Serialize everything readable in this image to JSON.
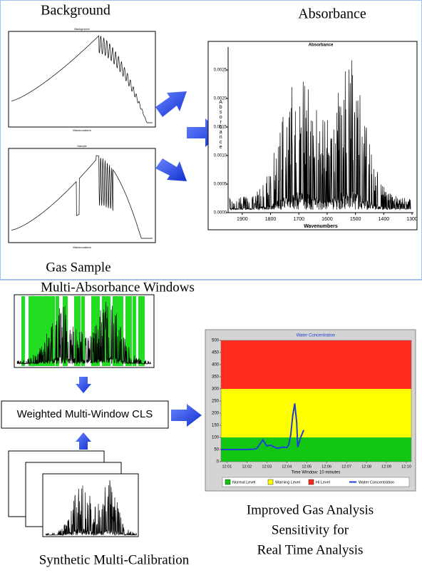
{
  "labels": {
    "background": "Background",
    "absorbance": "Absorbance",
    "gas_sample": "Gas Sample",
    "multi_windows": "Multi-Absorbance Windows",
    "cls": "Weighted Multi-Window CLS",
    "synthetic": "Synthetic Multi-Calibration",
    "improved": [
      "Improved Gas Analysis",
      "Sensitivity for",
      "Real Time Analysis"
    ]
  },
  "background_chart": {
    "title": "Background",
    "x_label": "Wavenumbers"
  },
  "sample_chart": {
    "title": "Sample",
    "x_label": "Wavenumbers"
  },
  "absorbance_chart": {
    "title": "Absorbance",
    "x_label": "Wavenumbers",
    "y_label": "Absorbance",
    "xlim": [
      1950,
      1295
    ],
    "xticks": [
      1900,
      1800,
      1700,
      1600,
      1500,
      1400,
      1300
    ],
    "ylim": [
      0,
      0.0029
    ],
    "yticks": [
      {
        "value": 0,
        "label": "0.0000"
      },
      {
        "value": 0.0005,
        "label": "0.0005"
      },
      {
        "value": 0.001,
        "label": "0.0010"
      },
      {
        "value": 0.0015,
        "label": "0.0015"
      },
      {
        "value": 0.002,
        "label": "0.0020"
      },
      {
        "value": 0.0025,
        "label": "0.0025"
      }
    ]
  },
  "water_chart": {
    "type": "line",
    "title": "Water Concentration",
    "x_label": "Time Window: 10 minutes",
    "xlim": [
      0.7,
      10.25
    ],
    "xticks": [
      {
        "value": 1,
        "label": "12:01"
      },
      {
        "value": 2,
        "label": "12:02"
      },
      {
        "value": 3,
        "label": "12:03"
      },
      {
        "value": 4,
        "label": "12:04"
      },
      {
        "value": 5,
        "label": "12:05"
      },
      {
        "value": 6,
        "label": "12:06"
      },
      {
        "value": 7,
        "label": "12:07"
      },
      {
        "value": 8,
        "label": "12:08"
      },
      {
        "value": 9,
        "label": "12:09"
      },
      {
        "value": 10,
        "label": "12:10"
      }
    ],
    "ylim": [
      0,
      500
    ],
    "yticks": [
      0,
      50,
      100,
      150,
      200,
      250,
      300,
      350,
      400,
      450,
      500
    ],
    "zones": [
      {
        "name": "Normal Level",
        "color": "#13c613",
        "range": [
          0,
          100
        ]
      },
      {
        "name": "Warning Level",
        "color": "#ffff00",
        "range": [
          100,
          300
        ]
      },
      {
        "name": "Hi Level",
        "color": "#ff2b1c",
        "range": [
          300,
          500
        ]
      }
    ],
    "series": [
      {
        "name": "Water Concentration",
        "color": "#1f3fd6",
        "x": [
          0.7,
          1,
          1.5,
          2,
          2.4,
          2.5,
          2.8,
          3,
          3.2,
          3.5,
          3.8,
          4,
          4.1,
          4.2,
          4.3,
          4.4,
          4.5,
          4.55,
          4.7,
          4.85
        ],
        "values": [
          50,
          50,
          50,
          50,
          52,
          55,
          90,
          65,
          68,
          55,
          60,
          58,
          70,
          110,
          190,
          240,
          160,
          60,
          100,
          130
        ]
      }
    ]
  }
}
